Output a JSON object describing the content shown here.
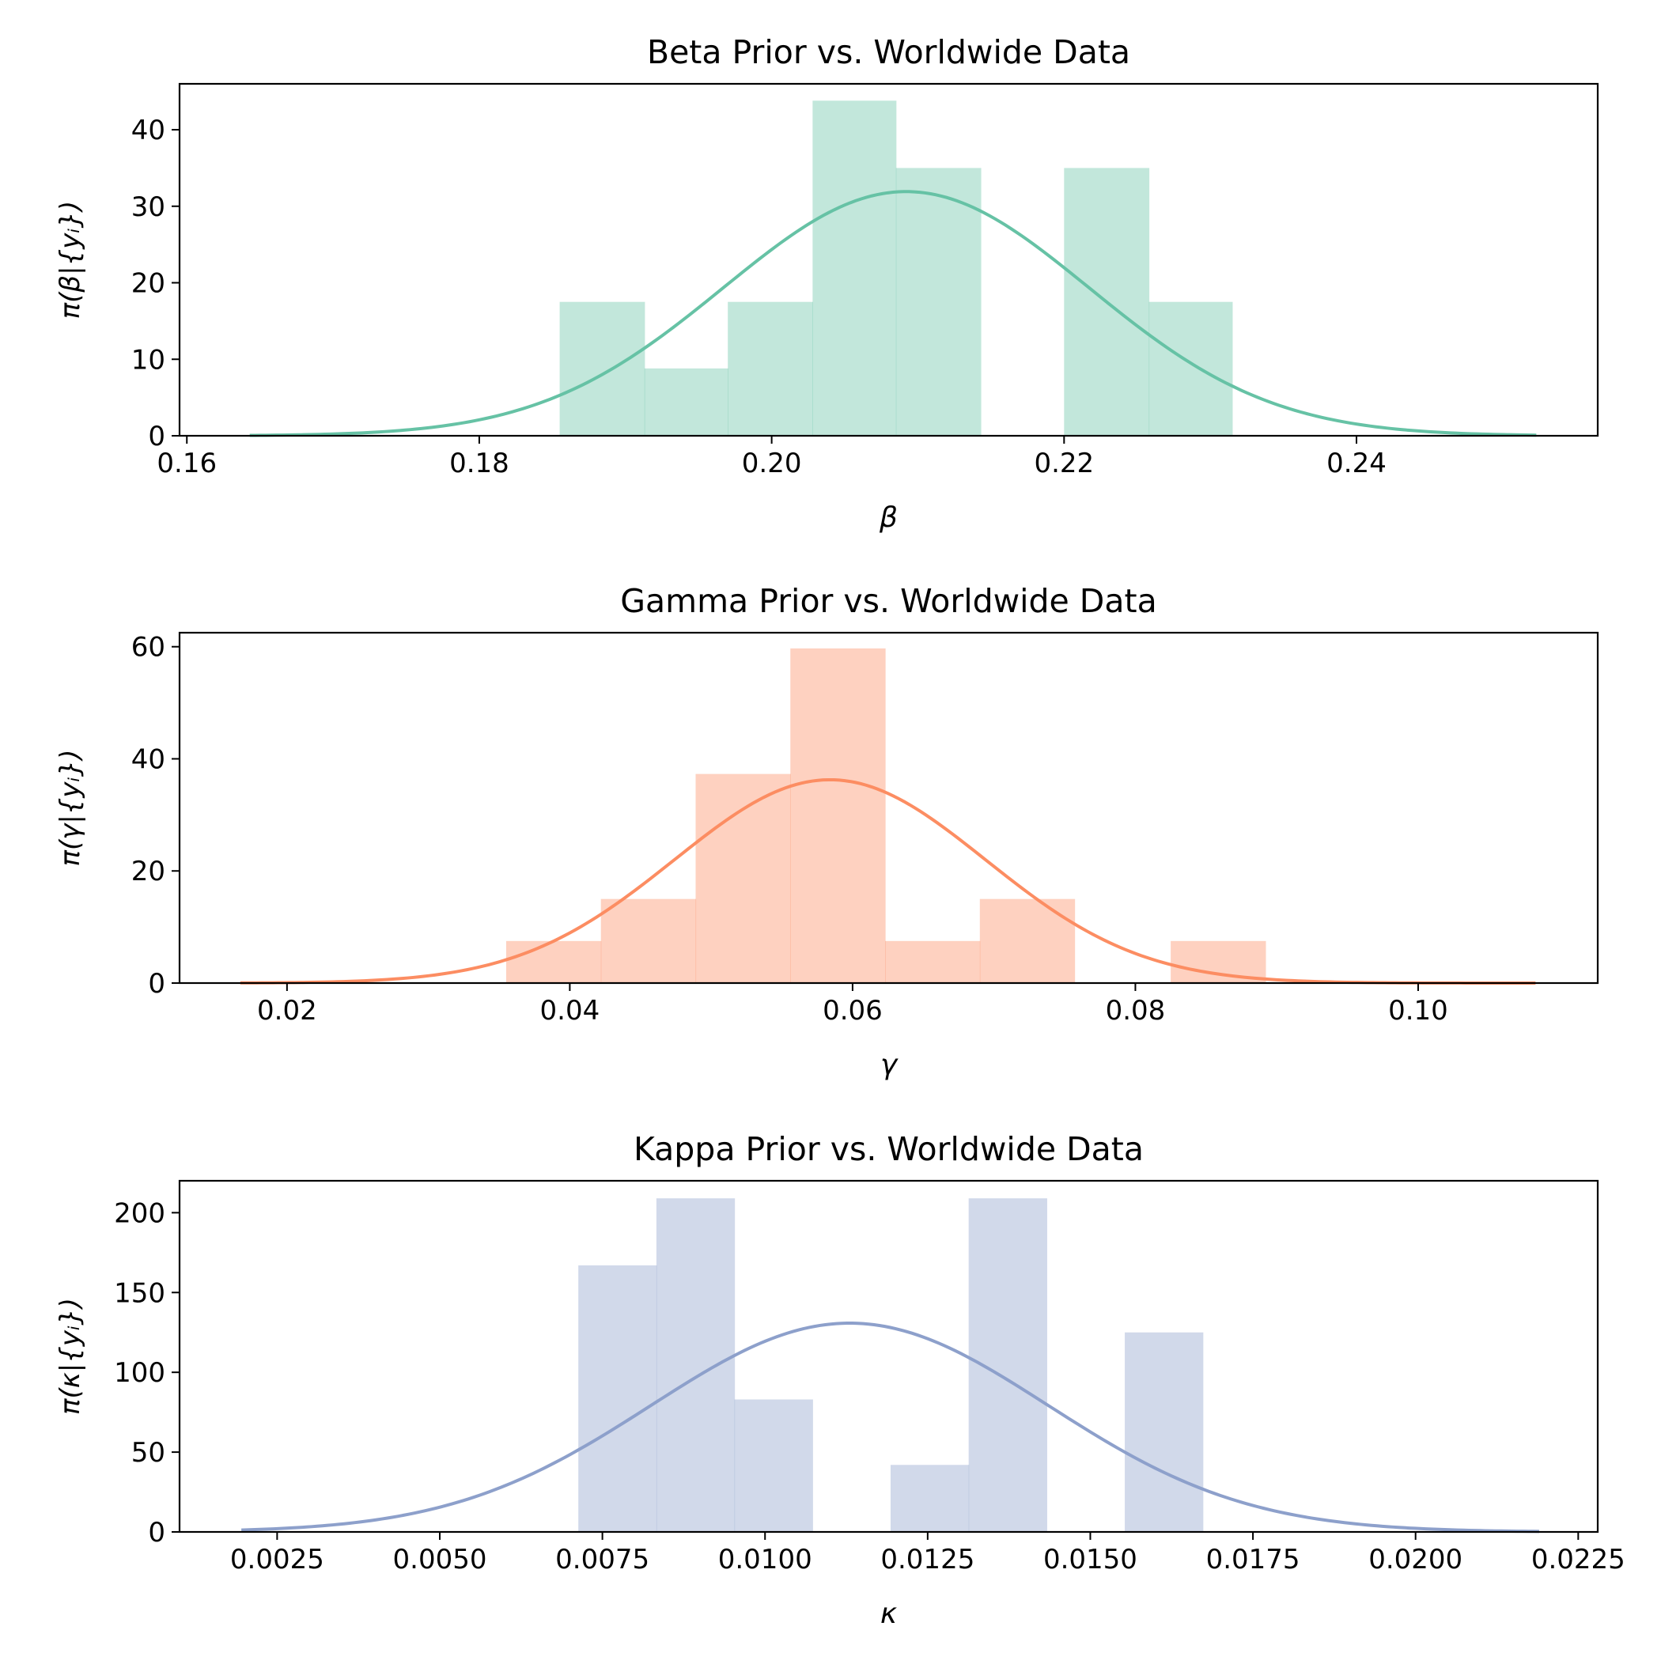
{
  "chart_data": [
    {
      "type": "bar",
      "title": "Beta Prior vs. Worldwide Data",
      "xlabel": "β",
      "ylabel": "π(β|{yᵢ})",
      "color": "#66c2a5",
      "xlim": [
        0.1595,
        0.2565
      ],
      "ylim": [
        0,
        46
      ],
      "xticks": [
        0.16,
        0.18,
        0.2,
        0.22,
        0.24
      ],
      "xtick_labels": [
        "0.16",
        "0.18",
        "0.20",
        "0.22",
        "0.24"
      ],
      "yticks": [
        0,
        10,
        20,
        30,
        40
      ],
      "ytick_labels": [
        "0",
        "10",
        "20",
        "30",
        "40"
      ],
      "histogram": {
        "bin_edges": [
          0.1855,
          0.1913,
          0.197,
          0.2028,
          0.2085,
          0.2143,
          0.22,
          0.2258,
          0.2315
        ],
        "densities": [
          17.5,
          8.8,
          17.5,
          43.8,
          35.0,
          0.0,
          35.0,
          17.5
        ]
      },
      "prior_curve": {
        "distribution": "normal",
        "mean": 0.2092,
        "sd": 0.0125,
        "x_range": [
          0.1643,
          0.2523
        ]
      }
    },
    {
      "type": "bar",
      "title": "Gamma Prior vs. Worldwide Data",
      "xlabel": "γ",
      "ylabel": "π(γ|{yᵢ})",
      "color": "#fc8d62",
      "xlim": [
        0.0124,
        0.1127
      ],
      "ylim": [
        0,
        62.5
      ],
      "xticks": [
        0.02,
        0.04,
        0.06,
        0.08,
        0.1
      ],
      "xtick_labels": [
        "0.02",
        "0.04",
        "0.06",
        "0.08",
        "0.10"
      ],
      "yticks": [
        0,
        20,
        40,
        60
      ],
      "ytick_labels": [
        "0",
        "20",
        "40",
        "60"
      ],
      "histogram": {
        "bin_edges": [
          0.0355,
          0.0422,
          0.0489,
          0.0556,
          0.0623,
          0.069,
          0.0757,
          0.0825,
          0.0892
        ],
        "densities": [
          7.5,
          15.0,
          37.3,
          59.7,
          7.5,
          15.0,
          0.0,
          7.5
        ]
      },
      "prior_curve": {
        "distribution": "normal",
        "mean": 0.0584,
        "sd": 0.011,
        "x_range": [
          0.0167,
          0.1083
        ]
      }
    },
    {
      "type": "bar",
      "title": "Kappa Prior vs. Worldwide Data",
      "xlabel": "κ",
      "ylabel": "π(κ|{yᵢ})",
      "color": "#8da0cb",
      "xlim": [
        0.001,
        0.0228
      ],
      "ylim": [
        0,
        220
      ],
      "xticks": [
        0.0025,
        0.005,
        0.0075,
        0.01,
        0.0125,
        0.015,
        0.0175,
        0.02,
        0.0225
      ],
      "xtick_labels": [
        "0.0025",
        "0.0050",
        "0.0075",
        "0.0100",
        "0.0125",
        "0.0150",
        "0.0175",
        "0.0200",
        "0.0225"
      ],
      "yticks": [
        0,
        50,
        100,
        150,
        200
      ],
      "ytick_labels": [
        "0",
        "50",
        "100",
        "150",
        "200"
      ],
      "histogram": {
        "bin_edges": [
          0.00713,
          0.00833,
          0.00953,
          0.01073,
          0.01193,
          0.01313,
          0.01433,
          0.01553,
          0.01673
        ],
        "densities": [
          167,
          209,
          83,
          0,
          42,
          209,
          0,
          125
        ]
      },
      "prior_curve": {
        "distribution": "normal",
        "mean": 0.0113,
        "sd": 0.00305,
        "x_range": [
          0.00195,
          0.0219
        ]
      }
    }
  ]
}
